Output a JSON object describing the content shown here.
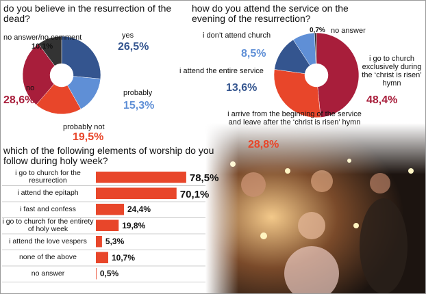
{
  "chart_data": [
    {
      "type": "pie",
      "title": "do you believe in the resurrection of the dead?",
      "categories": [
        "yes",
        "probably",
        "probably not",
        "no",
        "no answer/no comment"
      ],
      "values": [
        26.5,
        15.3,
        19.5,
        28.6,
        10.1
      ],
      "value_labels": [
        "26,5%",
        "15,3%",
        "19,5%",
        "28,6%",
        "10,1%"
      ],
      "colors": [
        "#34558f",
        "#5f8fd6",
        "#e8462a",
        "#a81e3b",
        "#333333"
      ]
    },
    {
      "type": "pie",
      "title": "how do you attend the service on the evening of the resurrection?",
      "categories": [
        "i go to church exclusively during the ‘christ is risen’ hymn",
        "i arrive from the beginning of the service and leave after the ‘christ is risen’ hymn",
        "i attend the entire service",
        "i don’t attend church",
        "no answer"
      ],
      "values": [
        48.4,
        28.8,
        13.6,
        8.5,
        0.7
      ],
      "value_labels": [
        "48,4%",
        "28,8%",
        "13,6%",
        "8,5%",
        "0,7%"
      ],
      "colors": [
        "#a81e3b",
        "#e8462a",
        "#34558f",
        "#5f8fd6",
        "#333333"
      ]
    },
    {
      "type": "bar",
      "orientation": "horizontal",
      "title": "which of the following elements of worship do you follow during holy week?",
      "categories": [
        "i go to church for the resurrection",
        "i attend the epitaph",
        "i fast and confess",
        "i go to church for the entirety of holy week",
        "i attend the love vespers",
        "none of the above",
        "no answer"
      ],
      "values": [
        78.5,
        70.1,
        24.4,
        19.8,
        5.3,
        10.7,
        0.5
      ],
      "value_labels": [
        "78,5%",
        "70,1%",
        "24,4%",
        "19,8%",
        "5,3%",
        "10,7%",
        "0,5%"
      ],
      "color": "#e8462a"
    }
  ]
}
